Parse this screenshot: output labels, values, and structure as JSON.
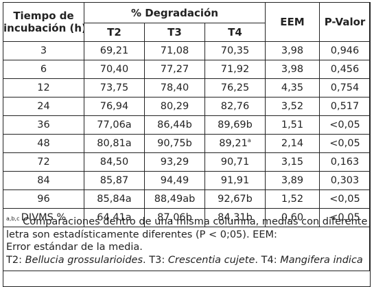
{
  "header": {
    "tiempo": "Tiempo de",
    "incubacion": "incubación (h)",
    "degradacion": "% Degradación",
    "t2": "T2",
    "t3": "T3",
    "t4": "T4",
    "eem": "EEM",
    "pvalor": "P-Valor"
  },
  "rows": [
    {
      "tiempo": "3",
      "t2": "69,21",
      "t2sup": "",
      "t3": "71,08",
      "t3sup": "",
      "t4": "70,35",
      "t4sup": "",
      "eem": "3,98",
      "p": "0,946"
    },
    {
      "tiempo": "6",
      "t2": "70,40",
      "t2sup": "",
      "t3": "77,27",
      "t3sup": "",
      "t4": "71,92",
      "t4sup": "",
      "eem": "3,98",
      "p": "0,456"
    },
    {
      "tiempo": "12",
      "t2": "73,75",
      "t2sup": "",
      "t3": "78,40",
      "t3sup": "",
      "t4": "76,25",
      "t4sup": "",
      "eem": "4,35",
      "p": "0,754"
    },
    {
      "tiempo": "24",
      "t2": "76,94",
      "t2sup": "",
      "t3": "80,29",
      "t3sup": "",
      "t4": "82,76",
      "t4sup": "",
      "eem": "3,52",
      "p": "0,517"
    },
    {
      "tiempo": "36",
      "t2": "77,06a",
      "t2sup": "",
      "t3": "86,44b",
      "t3sup": "",
      "t4": "89,69b",
      "t4sup": "",
      "eem": "1,51",
      "p": "<0,05"
    },
    {
      "tiempo": "48",
      "t2": "80,81a",
      "t2sup": "",
      "t3": "90,75b",
      "t3sup": "",
      "t4": "89,21",
      "t4sup": "a",
      "eem": "2,14",
      "p": "<0,05"
    },
    {
      "tiempo": "72",
      "t2": "84,50",
      "t2sup": "",
      "t3": "93,29",
      "t3sup": "",
      "t4": "90,71",
      "t4sup": "",
      "eem": "3,15",
      "p": "0,163"
    },
    {
      "tiempo": "84",
      "t2": "85,87",
      "t2sup": "",
      "t3": "94,49",
      "t3sup": "",
      "t4": "91,91",
      "t4sup": "",
      "eem": "3,89",
      "p": "0,303"
    },
    {
      "tiempo": "96",
      "t2": "85,84a",
      "t2sup": "",
      "t3": "88,49ab",
      "t3sup": "",
      "t4": "92,67b",
      "t4sup": "",
      "eem": "1,52",
      "p": "<0,05"
    },
    {
      "tiempo": "DIVMS %",
      "t2": "64,41a",
      "t2sup": "",
      "t3": "87,06b",
      "t3sup": "",
      "t4": "84,31b",
      "t4sup": "",
      "eem": "0,60",
      "p": "<0,05"
    }
  ],
  "footnote": {
    "sup": "a,b,c",
    "line1": " Comparaciones dentro de una misma columna, medias con diferente",
    "line2": "letra son estadísticamente diferentes (P < 0;05). EEM:",
    "line3": "Error estándar de la media.",
    "t2_prefix": "T2: ",
    "t2_species": "Bellucia grossularioides",
    "t3_prefix": ". T3: ",
    "t3_species": "Crescentia cujete",
    "t4_prefix": ". T4: ",
    "t4_species": "Mangifera indica"
  }
}
